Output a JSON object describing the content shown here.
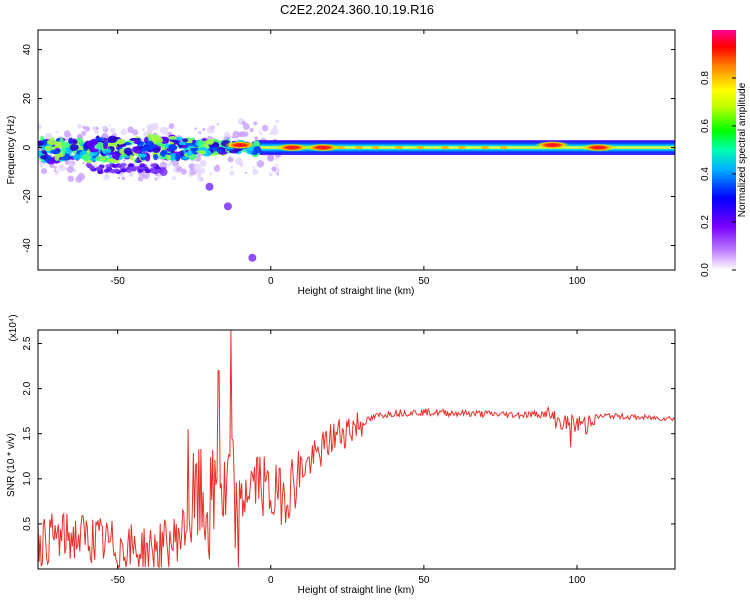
{
  "chart_data": [
    {
      "type": "heatmap",
      "title": "C2E2.2024.360.10.19.R16",
      "xlabel": "Height of straight line (km)",
      "ylabel": "Frequency (Hz)",
      "xlim": [
        -76,
        132
      ],
      "ylim": [
        -50,
        48
      ],
      "xticks": [
        -50,
        0,
        50,
        100
      ],
      "xtick_labels": [
        "-50",
        "0",
        "50",
        "100"
      ],
      "yticks": [
        -40,
        -20,
        0,
        20,
        40
      ],
      "ytick_labels": [
        "-40",
        "-20",
        "0",
        "20",
        "40"
      ],
      "colorbar": {
        "label": "Normalized spectral amplitude",
        "range": [
          0,
          1
        ],
        "ticks": [
          0.0,
          0.2,
          0.4,
          0.6,
          0.8
        ],
        "tick_labels": [
          "0.0",
          "0.2",
          "0.4",
          "0.6",
          "0.8"
        ],
        "colors": [
          "#ffffff",
          "#8800ff",
          "#0000ff",
          "#00ffff",
          "#00ff00",
          "#ffff00",
          "#ff8800",
          "#ff0000",
          "#ff00cc"
        ]
      },
      "band_center_hz": 0,
      "band_halfwidth_hz": 3,
      "hot_spots": [
        {
          "x": 92,
          "y": 1,
          "value": 0.95
        },
        {
          "x": 107,
          "y": 0,
          "value": 0.95
        },
        {
          "x": 17,
          "y": 0,
          "value": 0.9
        },
        {
          "x": 7,
          "y": 0,
          "value": 0.8
        },
        {
          "x": -10,
          "y": 1,
          "value": 0.7
        }
      ],
      "scatter_blobs": [
        {
          "x": -35,
          "y": -10
        },
        {
          "x": -20,
          "y": -16
        },
        {
          "x": -14,
          "y": -24
        },
        {
          "x": -6,
          "y": -45
        }
      ]
    },
    {
      "type": "line",
      "xlabel": "Height of straight line (km)",
      "ylabel": "SNR (10 * v/v)",
      "y_multiplier": "(x10⁴)",
      "xlim": [
        -76,
        132
      ],
      "ylim": [
        0,
        2.65
      ],
      "xticks": [
        -50,
        0,
        50,
        100
      ],
      "xtick_labels": [
        "-50",
        "0",
        "50",
        "100"
      ],
      "yticks": [
        0.5,
        1.0,
        1.5,
        2.0,
        2.5
      ],
      "ytick_labels": [
        "0.5",
        "1.0",
        "1.5",
        "2.0",
        "2.5"
      ],
      "line_color": "#e8302a",
      "series": [
        {
          "name": "SNR",
          "x": [
            -76,
            -70,
            -60,
            -50,
            -40,
            -32,
            -28,
            -24,
            -20,
            -17,
            -15,
            -13,
            -11,
            -8,
            -4,
            0,
            5,
            10,
            15,
            20,
            25,
            30,
            35,
            40,
            50,
            60,
            70,
            80,
            90,
            95,
            100,
            105,
            110,
            120,
            132
          ],
          "y": [
            0.3,
            0.35,
            0.35,
            0.25,
            0.2,
            0.3,
            0.45,
            0.8,
            0.6,
            1.0,
            0.7,
            1.1,
            0.4,
            0.9,
            1.0,
            0.8,
            0.85,
            1.1,
            1.25,
            1.45,
            1.55,
            1.62,
            1.7,
            1.73,
            1.74,
            1.73,
            1.72,
            1.71,
            1.72,
            1.62,
            1.6,
            1.68,
            1.7,
            1.68,
            1.67
          ]
        }
      ],
      "spikes": [
        {
          "x": -27,
          "y": 1.55
        },
        {
          "x": -17,
          "y": 2.2
        },
        {
          "x": -13,
          "y": 2.65
        },
        {
          "x": 98,
          "y": 1.35
        },
        {
          "x": 103,
          "y": 1.5
        }
      ]
    }
  ]
}
